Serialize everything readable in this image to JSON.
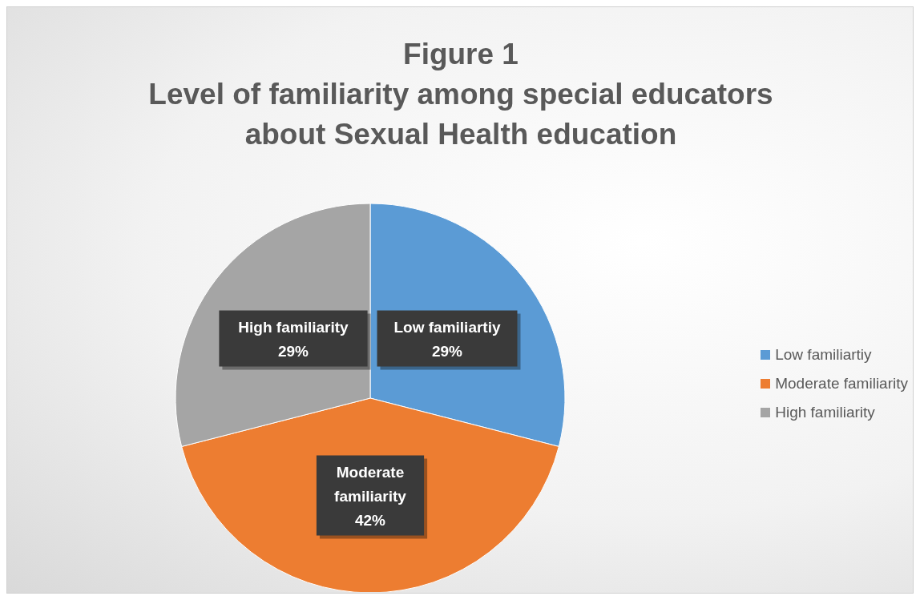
{
  "chart_data": {
    "type": "pie",
    "title": "Figure 1",
    "subtitle": "Level of familiarity among special educators about Sexual Health education",
    "categories": [
      "Low familiartiy",
      "Moderate familiarity",
      "High familiarity"
    ],
    "values": [
      29,
      42,
      29
    ],
    "colors": [
      "#5b9bd5",
      "#ed7d31",
      "#a5a5a5"
    ],
    "value_labels": [
      "29%",
      "42%",
      "29%"
    ],
    "legend": "right"
  }
}
